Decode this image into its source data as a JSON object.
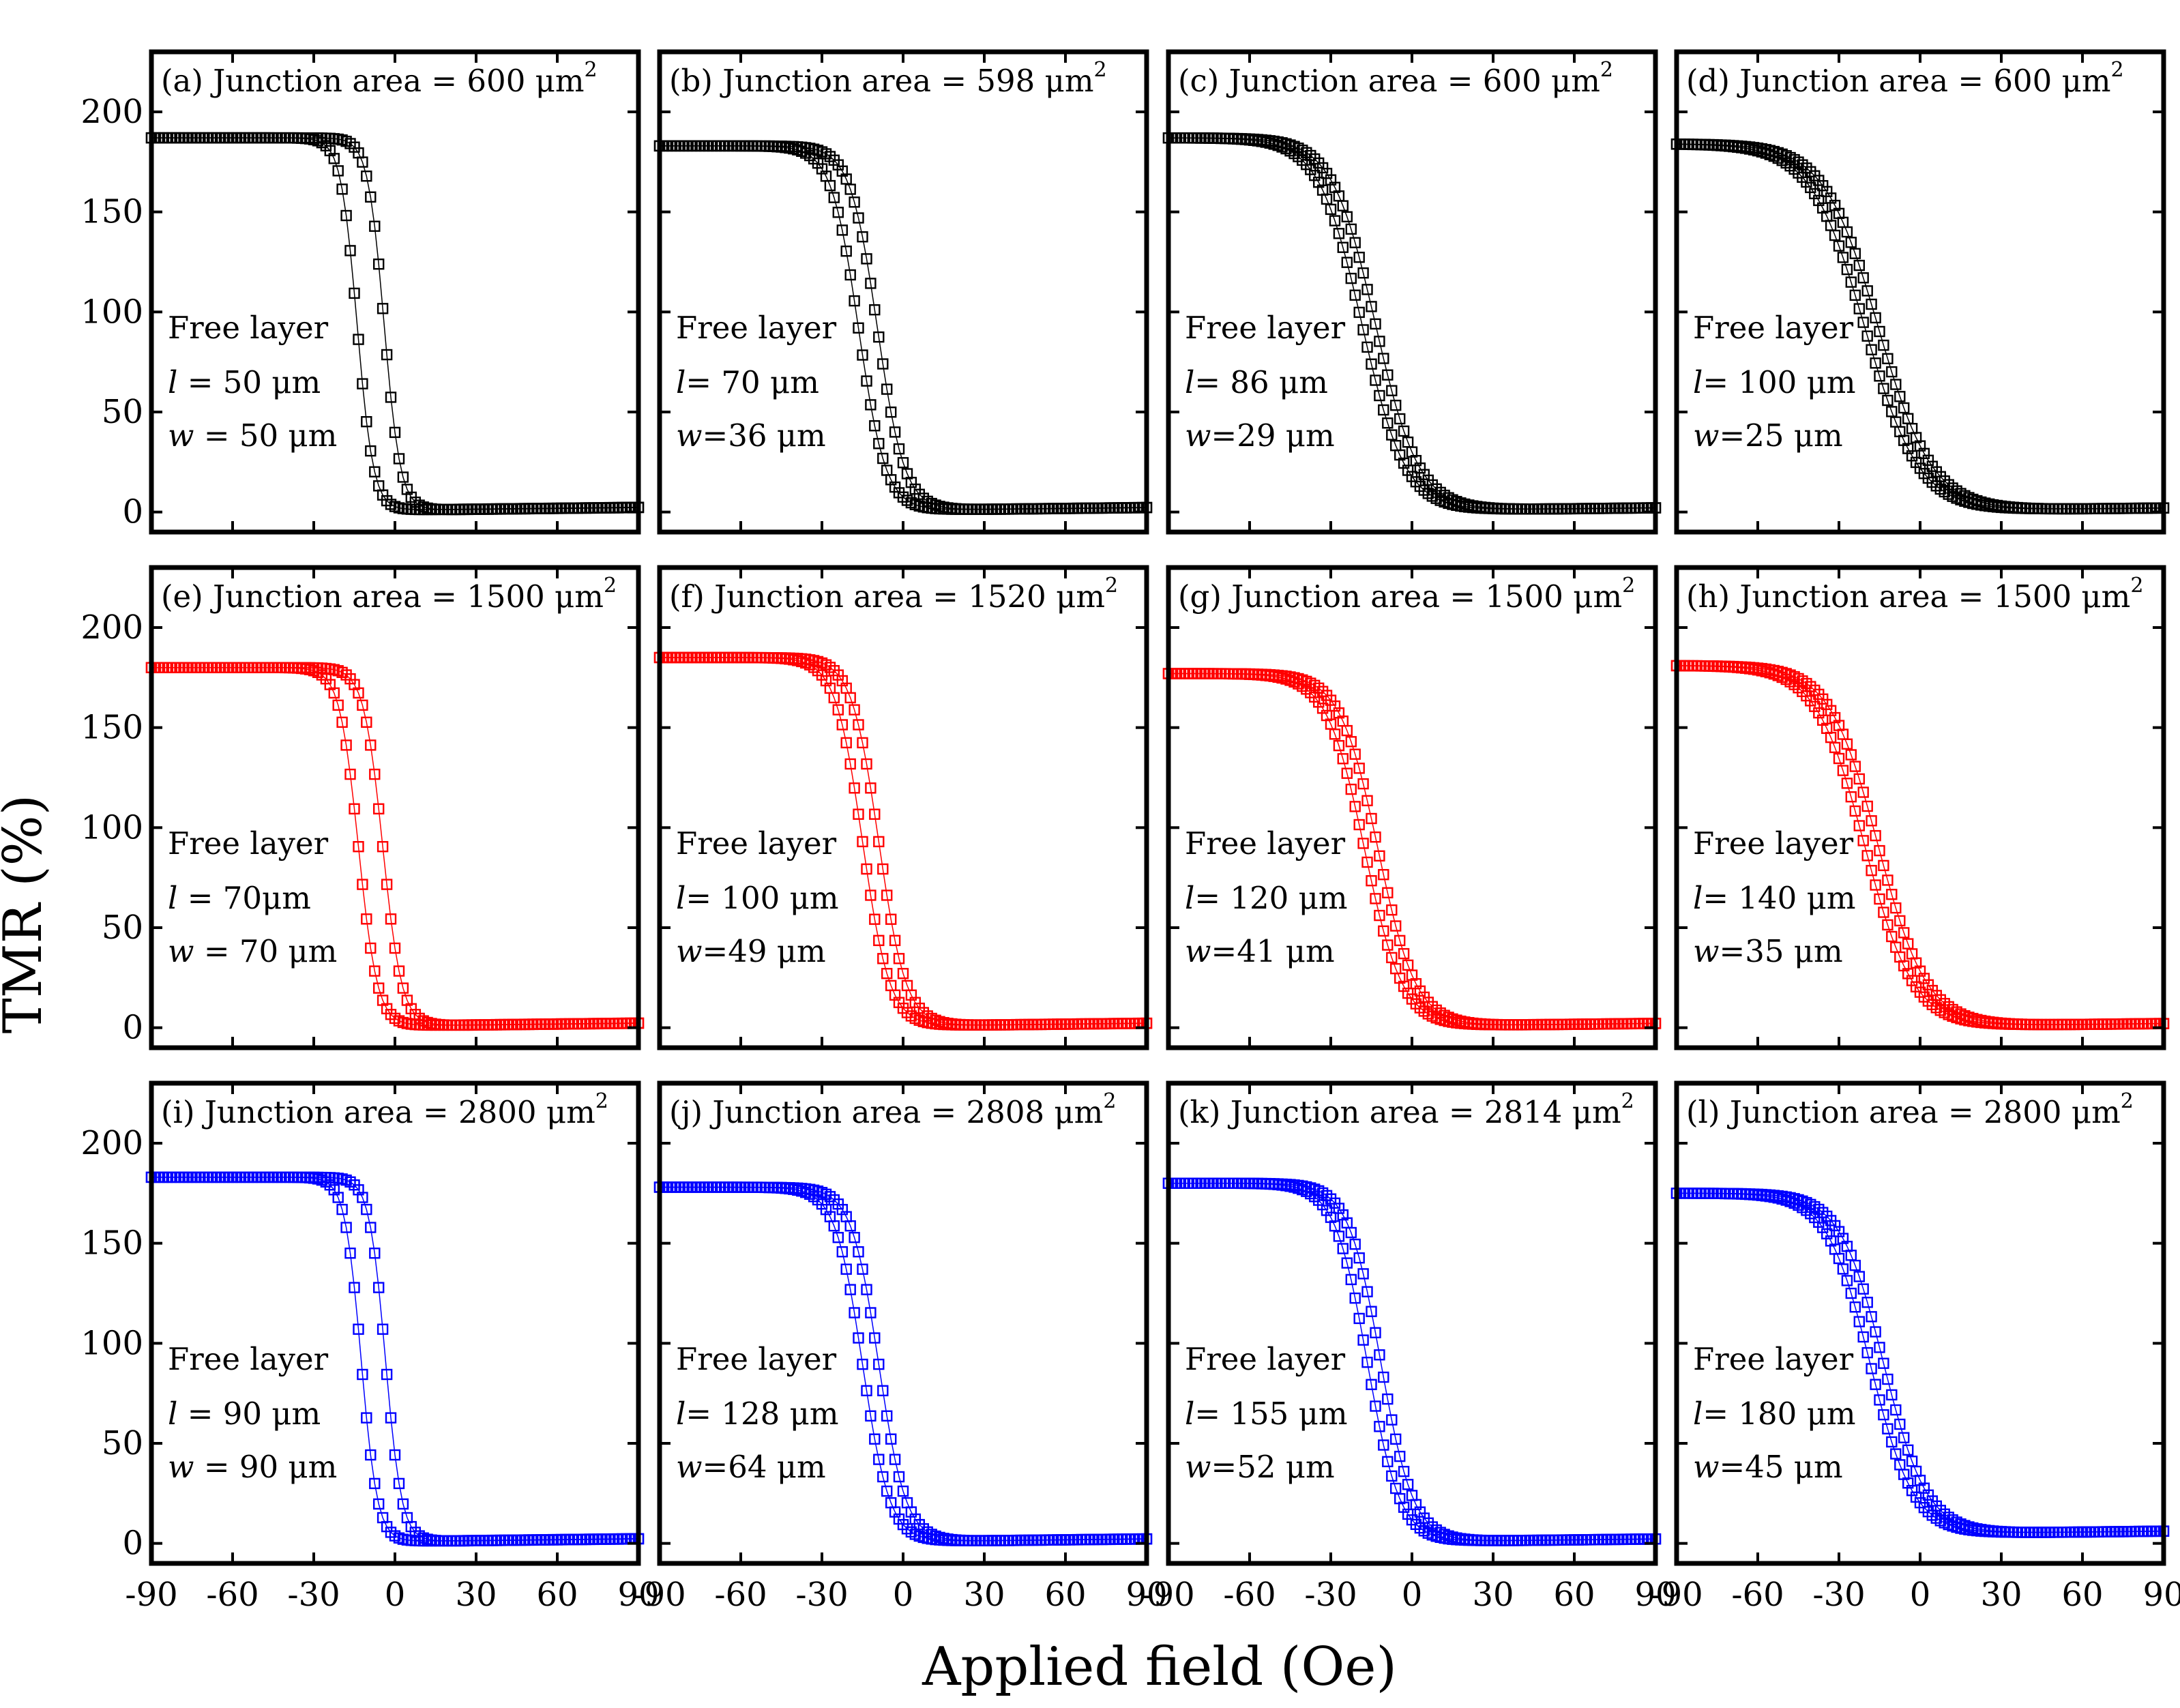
{
  "figure": {
    "xlabel": "Applied field (Oe)",
    "ylabel": "TMR (%)"
  },
  "axes": {
    "xlim": [
      -90,
      90
    ],
    "ylim": [
      -10,
      230
    ],
    "xticks": [
      -90,
      -60,
      -30,
      0,
      30,
      60,
      90
    ],
    "yticks": [
      0,
      50,
      100,
      150,
      200
    ]
  },
  "text": {
    "junction_prefix": "Junction area =",
    "area_unit": "μm",
    "area_exp": "2",
    "free_layer": "Free layer",
    "l_sym": "l",
    "w_sym": "w",
    "len_unit": "μm"
  },
  "colors": {
    "row1": "#000000",
    "row2": "#ff0000",
    "row3": "#0000ff"
  },
  "chart_data": [
    {
      "type": "scatter",
      "panel": "(a)",
      "row": 1,
      "junction_area": "600",
      "l": "50",
      "w": "50",
      "sep": " = ",
      "y_high": 187,
      "y_low": 1,
      "center": -9,
      "width": 3,
      "hyst": 10
    },
    {
      "type": "scatter",
      "panel": "(b)",
      "row": 1,
      "junction_area": "598",
      "l": "70",
      "w": "36",
      "sep": "=",
      "y_high": 183,
      "y_low": 1,
      "center": -13,
      "width": 5,
      "hyst": 7
    },
    {
      "type": "scatter",
      "panel": "(c)",
      "row": 1,
      "junction_area": "600",
      "l": "86",
      "w": "29",
      "sep": "=",
      "y_high": 187,
      "y_low": 1,
      "center": -16,
      "width": 8,
      "hyst": 5
    },
    {
      "type": "scatter",
      "panel": "(d)",
      "row": 1,
      "junction_area": "600",
      "l": "100",
      "w": "25",
      "sep": "=",
      "y_high": 184,
      "y_low": 1,
      "center": -18,
      "width": 10,
      "hyst": 5
    },
    {
      "type": "scatter",
      "panel": "(e)",
      "row": 2,
      "junction_area": "1500",
      "l": "70",
      "w": "70",
      "sep": " = ",
      "l_sep": " =",
      "l_unit_sep": "",
      "y_high": 180,
      "y_low": 1,
      "center": -9,
      "width": 3.5,
      "hyst": 9
    },
    {
      "type": "scatter",
      "panel": "(f)",
      "row": 2,
      "junction_area": "1520",
      "l": "100",
      "w": "49",
      "sep": "=",
      "y_high": 185,
      "y_low": 1,
      "center": -12,
      "width": 5,
      "hyst": 6
    },
    {
      "type": "scatter",
      "panel": "(g)",
      "row": 2,
      "junction_area": "1500",
      "l": "120",
      "w": "41",
      "sep": "=",
      "y_high": 177,
      "y_low": 1,
      "center": -15,
      "width": 7,
      "hyst": 5
    },
    {
      "type": "scatter",
      "panel": "(h)",
      "row": 2,
      "junction_area": "1500",
      "l": "140",
      "w": "35",
      "sep": "=",
      "y_high": 181,
      "y_low": 1,
      "center": -18,
      "width": 9,
      "hyst": 5
    },
    {
      "type": "scatter",
      "panel": "(i)",
      "row": 3,
      "junction_area": "2800",
      "l": "90",
      "w": "90",
      "sep": " = ",
      "y_high": 183,
      "y_low": 1,
      "center": -8,
      "width": 3,
      "hyst": 9
    },
    {
      "type": "scatter",
      "panel": "(j)",
      "row": 3,
      "junction_area": "2808",
      "l": "128",
      "w": "64",
      "sep": "=",
      "y_high": 178,
      "y_low": 1,
      "center": -12,
      "width": 5,
      "hyst": 6
    },
    {
      "type": "scatter",
      "panel": "(k)",
      "row": 3,
      "junction_area": "2814",
      "l": "155",
      "w": "52",
      "sep": "=",
      "y_high": 180,
      "y_low": 1,
      "center": -14,
      "width": 6,
      "hyst": 5
    },
    {
      "type": "scatter",
      "panel": "(l)",
      "row": 3,
      "junction_area": "2800",
      "l": "180",
      "w": "45",
      "sep": "=",
      "y_high": 175,
      "y_low": 5,
      "center": -16,
      "width": 8,
      "hyst": 5
    }
  ]
}
